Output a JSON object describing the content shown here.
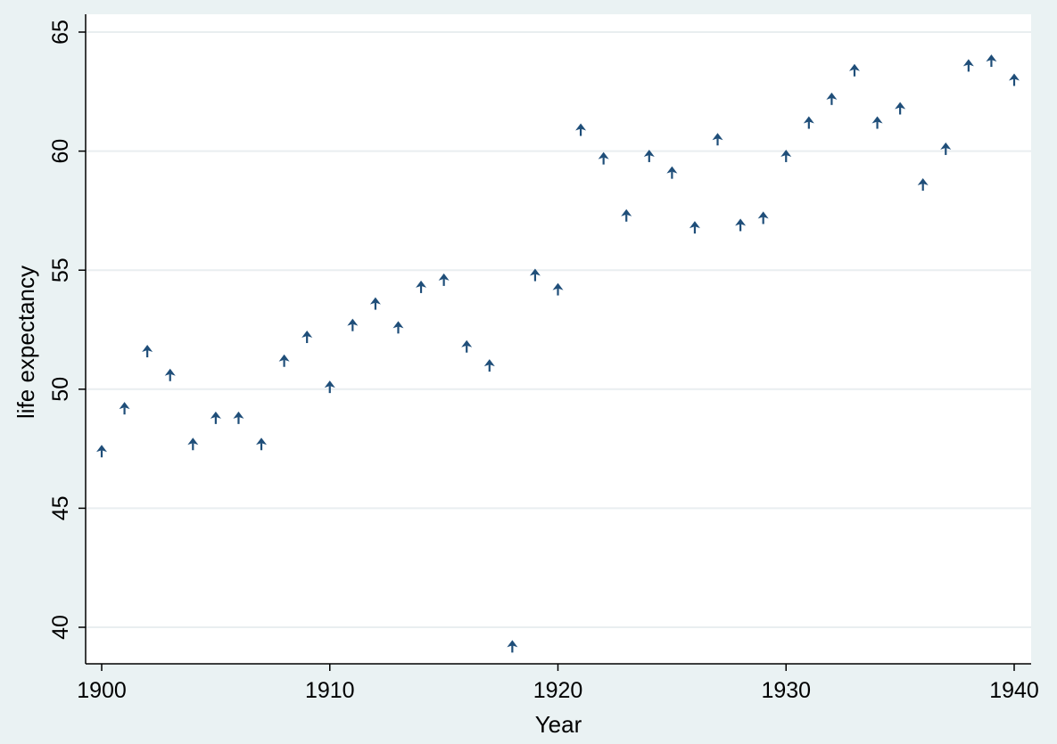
{
  "chart_data": {
    "type": "scatter",
    "title": "",
    "xlabel": "Year",
    "ylabel": "life expectancy",
    "xlim": [
      1900,
      1940
    ],
    "ylim": [
      38.5,
      65.9
    ],
    "xticks": [
      1900,
      1910,
      1920,
      1930,
      1940
    ],
    "yticks": [
      40,
      45,
      50,
      55,
      60,
      65
    ],
    "grid": true,
    "marker": "arrow-up",
    "colors": {
      "marker": "#1f4e79",
      "grid": "#e9eef0",
      "plot_bg": "#ffffff",
      "outer_bg": "#eaf2f3"
    },
    "series": [
      {
        "points": [
          {
            "x": 1900,
            "y": 47.4
          },
          {
            "x": 1901,
            "y": 49.2
          },
          {
            "x": 1902,
            "y": 51.6
          },
          {
            "x": 1903,
            "y": 50.6
          },
          {
            "x": 1904,
            "y": 47.7
          },
          {
            "x": 1905,
            "y": 48.8
          },
          {
            "x": 1906,
            "y": 48.8
          },
          {
            "x": 1907,
            "y": 47.7
          },
          {
            "x": 1908,
            "y": 51.2
          },
          {
            "x": 1909,
            "y": 52.2
          },
          {
            "x": 1910,
            "y": 50.1
          },
          {
            "x": 1911,
            "y": 52.7
          },
          {
            "x": 1912,
            "y": 53.6
          },
          {
            "x": 1913,
            "y": 52.6
          },
          {
            "x": 1914,
            "y": 54.3
          },
          {
            "x": 1915,
            "y": 54.6
          },
          {
            "x": 1916,
            "y": 51.8
          },
          {
            "x": 1917,
            "y": 51.0
          },
          {
            "x": 1918,
            "y": 39.2
          },
          {
            "x": 1919,
            "y": 54.8
          },
          {
            "x": 1920,
            "y": 54.2
          },
          {
            "x": 1921,
            "y": 60.9
          },
          {
            "x": 1922,
            "y": 59.7
          },
          {
            "x": 1923,
            "y": 57.3
          },
          {
            "x": 1924,
            "y": 59.8
          },
          {
            "x": 1925,
            "y": 59.1
          },
          {
            "x": 1926,
            "y": 56.8
          },
          {
            "x": 1927,
            "y": 60.5
          },
          {
            "x": 1928,
            "y": 56.9
          },
          {
            "x": 1929,
            "y": 57.2
          },
          {
            "x": 1930,
            "y": 59.8
          },
          {
            "x": 1931,
            "y": 61.2
          },
          {
            "x": 1932,
            "y": 62.2
          },
          {
            "x": 1933,
            "y": 63.4
          },
          {
            "x": 1934,
            "y": 61.2
          },
          {
            "x": 1935,
            "y": 61.8
          },
          {
            "x": 1936,
            "y": 58.6
          },
          {
            "x": 1937,
            "y": 60.1
          },
          {
            "x": 1938,
            "y": 63.6
          },
          {
            "x": 1939,
            "y": 63.8
          },
          {
            "x": 1940,
            "y": 63.0
          }
        ]
      }
    ]
  }
}
